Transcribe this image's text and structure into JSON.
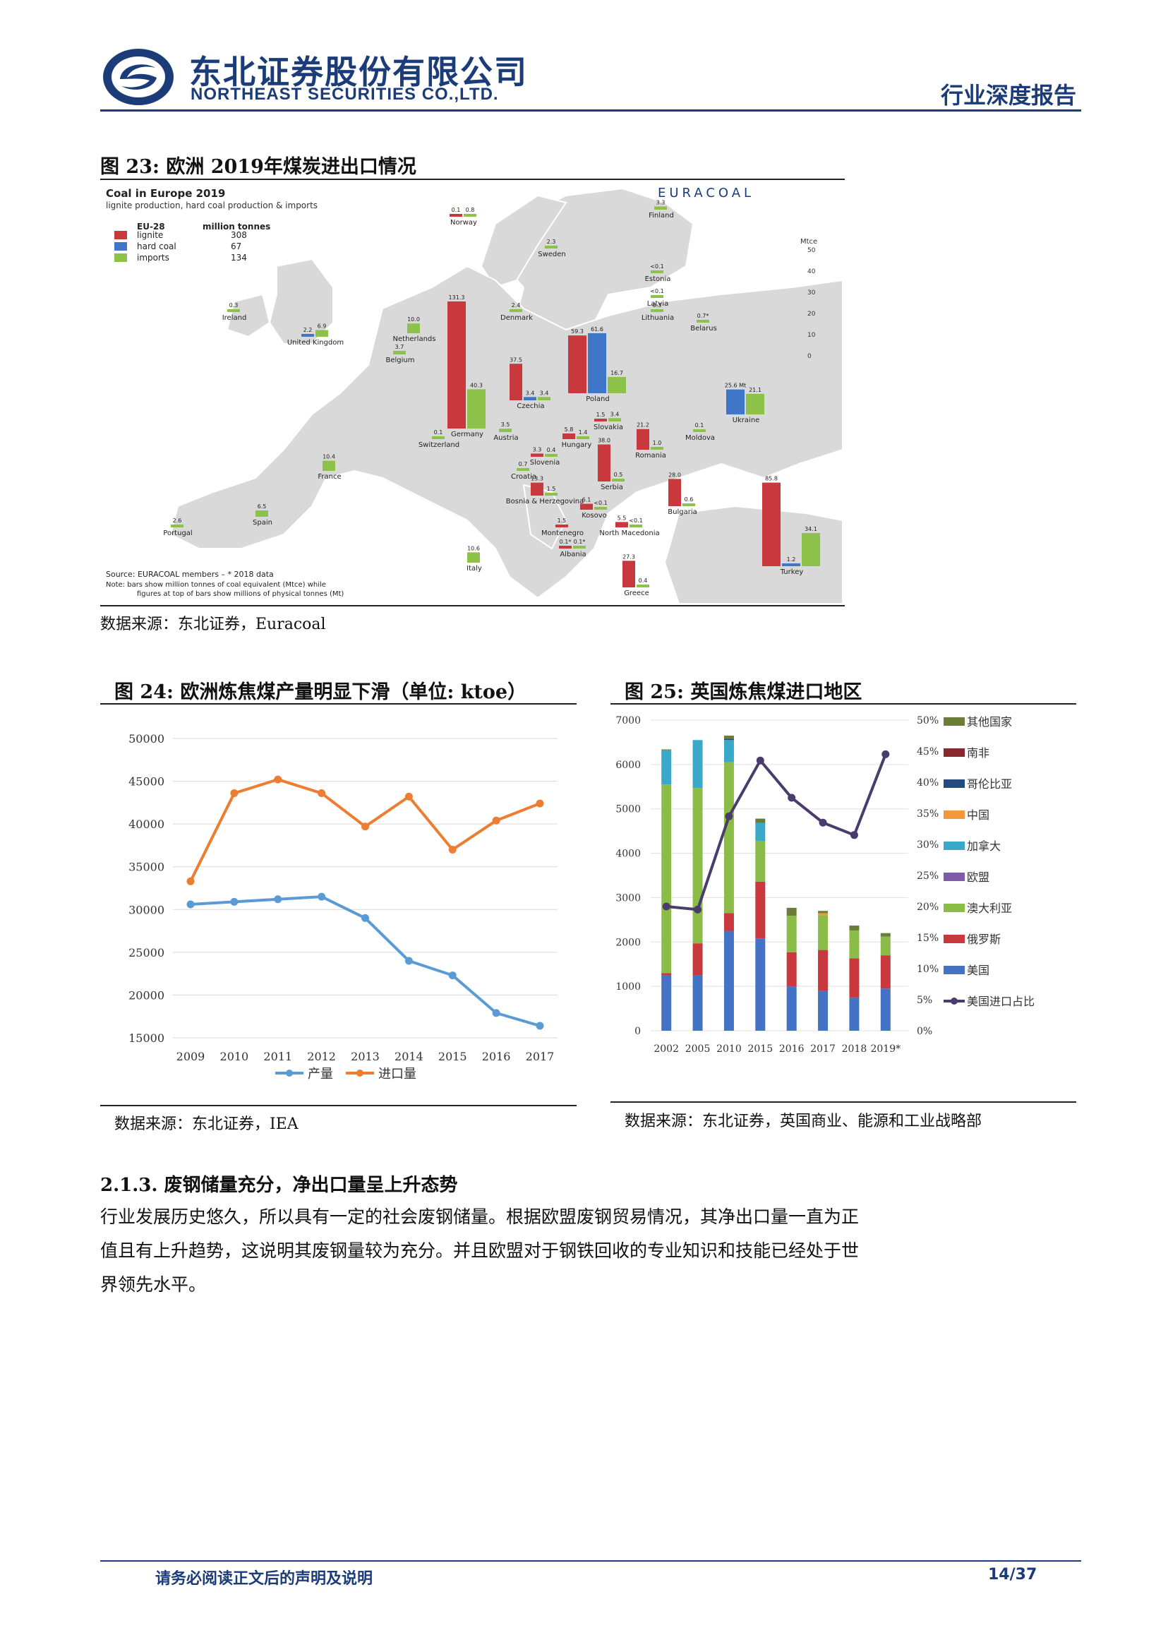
{
  "header": {
    "company_cn": "东北证券股份有限公司",
    "company_en": "NORTHEAST SECURITIES CO.,LTD.",
    "report_type": "行业深度报告"
  },
  "fig23": {
    "title": "图 23: 欧洲 2019年煤炭进出口情况",
    "source": "数据来源：东北证券，Euracoal",
    "map": {
      "title": "Coal in Europe 2019",
      "subtitle": "lignite production, hard coal production & imports",
      "brand": "EURACOAL",
      "legend_header": "EU-28",
      "legend_unit": "million tonnes",
      "legend": [
        {
          "label": "lignite",
          "value": "308",
          "color": "#c8383c"
        },
        {
          "label": "hard coal",
          "value": "67",
          "color": "#3f76c8"
        },
        {
          "label": "imports",
          "value": "134",
          "color": "#8cc24a"
        }
      ],
      "scale_unit": "Mtce",
      "scale_ticks": [
        "50",
        "40",
        "30",
        "20",
        "10",
        "0"
      ],
      "source_note": "Source: EURACOAL members  –  * 2018 data",
      "note1": "Note:    bars show million tonnes of coal equivalent (Mtce) while",
      "note2": "figures at top of bars show millions of physical tonnes (Mt)",
      "countries": [
        {
          "name": "Norway",
          "bars": [
            {
              "type": "lignite",
              "label": "0.1",
              "value": 0.1
            },
            {
              "type": "imports",
              "label": "0.8",
              "value": 0.8
            }
          ]
        },
        {
          "name": "Finland",
          "bars": [
            {
              "type": "imports",
              "label": "3.3",
              "value": 3.3
            }
          ]
        },
        {
          "name": "Sweden",
          "bars": [
            {
              "type": "imports",
              "label": "2.3",
              "value": 2.3
            }
          ]
        },
        {
          "name": "Estonia",
          "bars": [
            {
              "type": "imports",
              "label": "<0.1",
              "value": 0.1
            }
          ]
        },
        {
          "name": "Latvia",
          "bars": [
            {
              "type": "imports",
              "label": "<0.1",
              "value": 0.1
            }
          ]
        },
        {
          "name": "Lithuania",
          "bars": [
            {
              "type": "imports",
              "label": "0.3",
              "value": 0.3
            }
          ]
        },
        {
          "name": "Ireland",
          "bars": [
            {
              "type": "imports",
              "label": "0.3",
              "value": 0.3
            }
          ]
        },
        {
          "name": "United Kingdom",
          "bars": [
            {
              "type": "hard coal",
              "label": "2.2",
              "value": 2.2
            },
            {
              "type": "imports",
              "label": "6.9",
              "value": 6.9
            }
          ]
        },
        {
          "name": "Denmark",
          "bars": [
            {
              "type": "imports",
              "label": "2.4",
              "value": 2.4
            }
          ]
        },
        {
          "name": "Netherlands",
          "bars": [
            {
              "type": "imports",
              "label": "10.0",
              "value": 10.0
            }
          ]
        },
        {
          "name": "Belgium",
          "bars": [
            {
              "type": "imports",
              "label": "3.7",
              "value": 3.7
            }
          ]
        },
        {
          "name": "Germany",
          "bars": [
            {
              "type": "lignite",
              "label": "131.3",
              "value": 131.3
            },
            {
              "type": "imports",
              "label": "40.3",
              "value": 40.3
            }
          ]
        },
        {
          "name": "Poland",
          "bars": [
            {
              "type": "lignite",
              "label": "59.3",
              "value": 59.3
            },
            {
              "type": "hard coal",
              "label": "61.6",
              "value": 61.6
            },
            {
              "type": "imports",
              "label": "16.7",
              "value": 16.7
            }
          ]
        },
        {
          "name": "Czechia",
          "bars": [
            {
              "type": "lignite",
              "label": "37.5",
              "value": 37.5
            },
            {
              "type": "hard coal",
              "label": "3.4",
              "value": 3.4
            },
            {
              "type": "imports",
              "label": "3.4",
              "value": 3.4
            }
          ]
        },
        {
          "name": "Belarus",
          "bars": [
            {
              "type": "imports",
              "label": "0.7*",
              "value": 0.7
            }
          ]
        },
        {
          "name": "Ukraine",
          "bars": [
            {
              "type": "hard coal",
              "label": "25.6 Mt",
              "value": 25.6
            },
            {
              "type": "imports",
              "label": "21.1",
              "value": 21.1
            }
          ]
        },
        {
          "name": "Slovakia",
          "bars": [
            {
              "type": "lignite",
              "label": "1.5",
              "value": 1.5
            },
            {
              "type": "imports",
              "label": "3.4",
              "value": 3.4
            }
          ]
        },
        {
          "name": "Austria",
          "bars": [
            {
              "type": "imports",
              "label": "3.5",
              "value": 3.5
            }
          ]
        },
        {
          "name": "Hungary",
          "bars": [
            {
              "type": "lignite",
              "label": "5.8",
              "value": 5.8
            },
            {
              "type": "imports",
              "label": "1.4",
              "value": 1.4
            }
          ]
        },
        {
          "name": "Switzerland",
          "bars": [
            {
              "type": "imports",
              "label": "0.1",
              "value": 0.1
            }
          ]
        },
        {
          "name": "France",
          "bars": [
            {
              "type": "imports",
              "label": "10.4",
              "value": 10.4
            }
          ]
        },
        {
          "name": "Slovenia",
          "bars": [
            {
              "type": "lignite",
              "label": "3.3",
              "value": 3.3
            },
            {
              "type": "imports",
              "label": "0.4",
              "value": 0.4
            }
          ]
        },
        {
          "name": "Croatia",
          "bars": [
            {
              "type": "imports",
              "label": "0.7",
              "value": 0.7
            }
          ]
        },
        {
          "name": "Romania",
          "bars": [
            {
              "type": "lignite",
              "label": "21.2",
              "value": 21.2
            },
            {
              "type": "imports",
              "label": "1.0",
              "value": 1.0
            }
          ]
        },
        {
          "name": "Moldova",
          "bars": [
            {
              "type": "imports",
              "label": "0.1",
              "value": 0.1
            }
          ]
        },
        {
          "name": "Serbia",
          "bars": [
            {
              "type": "lignite",
              "label": "38.0",
              "value": 38.0
            },
            {
              "type": "imports",
              "label": "0.5",
              "value": 0.5
            }
          ]
        },
        {
          "name": "Bosnia & Herzegovina",
          "bars": [
            {
              "type": "lignite",
              "label": "13.3",
              "value": 13.3
            },
            {
              "type": "imports",
              "label": "1.5",
              "value": 1.5
            }
          ]
        },
        {
          "name": "Kosovo",
          "bars": [
            {
              "type": "lignite",
              "label": "6.1",
              "value": 6.1
            },
            {
              "type": "imports",
              "label": "<0.1",
              "value": 0.1
            }
          ]
        },
        {
          "name": "Bulgaria",
          "bars": [
            {
              "type": "lignite",
              "label": "28.0",
              "value": 28.0
            },
            {
              "type": "imports",
              "label": "0.6",
              "value": 0.6
            }
          ]
        },
        {
          "name": "Montenegro",
          "bars": [
            {
              "type": "lignite",
              "label": "1.5",
              "value": 1.5
            }
          ]
        },
        {
          "name": "North Macedonia",
          "bars": [
            {
              "type": "lignite",
              "label": "5.5",
              "value": 5.5
            },
            {
              "type": "imports",
              "label": "<0.1",
              "value": 0.1
            }
          ]
        },
        {
          "name": "Albania",
          "bars": [
            {
              "type": "lignite",
              "label": "0.1*",
              "value": 0.1
            },
            {
              "type": "imports",
              "label": "0.1*",
              "value": 0.1
            }
          ]
        },
        {
          "name": "Portugal",
          "bars": [
            {
              "type": "imports",
              "label": "2.6",
              "value": 2.6
            }
          ]
        },
        {
          "name": "Spain",
          "bars": [
            {
              "type": "imports",
              "label": "6.5",
              "value": 6.5
            }
          ]
        },
        {
          "name": "Italy",
          "bars": [
            {
              "type": "imports",
              "label": "10.6",
              "value": 10.6
            }
          ]
        },
        {
          "name": "Greece",
          "bars": [
            {
              "type": "lignite",
              "label": "27.3",
              "value": 27.3
            },
            {
              "type": "imports",
              "label": "0.4",
              "value": 0.4
            }
          ]
        },
        {
          "name": "Turkey",
          "bars": [
            {
              "type": "lignite",
              "label": "85.8",
              "value": 85.8
            },
            {
              "type": "hard coal",
              "label": "1.2",
              "value": 1.2
            },
            {
              "type": "imports",
              "label": "34.1",
              "value": 34.1
            }
          ]
        }
      ]
    }
  },
  "fig24": {
    "title": "图 24: 欧洲炼焦煤产量明显下滑（单位: ktoe）",
    "source": "数据来源：东北证券，IEA"
  },
  "fig25": {
    "title": "图 25: 英国炼焦煤进口地区",
    "source": "数据来源：东北证券，英国商业、能源和工业战略部"
  },
  "chart_data": [
    {
      "type": "line",
      "x": [
        "2009",
        "2010",
        "2011",
        "2012",
        "2013",
        "2014",
        "2015",
        "2016",
        "2017"
      ],
      "series": [
        {
          "name": "产量",
          "color": "#5b9bd5",
          "values": [
            30600,
            30900,
            31200,
            31500,
            29000,
            24000,
            22300,
            17900,
            16400
          ]
        },
        {
          "name": "进口量",
          "color": "#ed7d31",
          "values": [
            33300,
            43600,
            45200,
            43600,
            39700,
            43200,
            37000,
            40400,
            42400
          ]
        }
      ],
      "ylim": [
        15000,
        50000
      ],
      "yticks": [
        "15000",
        "20000",
        "25000",
        "30000",
        "35000",
        "40000",
        "45000",
        "50000"
      ],
      "legend": "bottom",
      "grid": true
    },
    {
      "type": "bar",
      "stacked": true,
      "categories": [
        "2002",
        "2005",
        "2010",
        "2015",
        "2016",
        "2017",
        "2018",
        "2019*"
      ],
      "series": [
        {
          "name": "美国",
          "color": "#4472c4",
          "values": [
            1250,
            1250,
            2250,
            2080,
            1000,
            900,
            750,
            950
          ]
        },
        {
          "name": "俄罗斯",
          "color": "#c8383c",
          "values": [
            50,
            720,
            400,
            1280,
            770,
            920,
            880,
            750
          ]
        },
        {
          "name": "澳大利亚",
          "color": "#8cbc48",
          "values": [
            4250,
            3500,
            3400,
            920,
            820,
            780,
            630,
            420
          ]
        },
        {
          "name": "欧盟",
          "color": "#7d5ca8",
          "values": [
            0,
            0,
            0,
            0,
            0,
            0,
            0,
            0
          ]
        },
        {
          "name": "加拿大",
          "color": "#3aa8c8",
          "values": [
            770,
            1080,
            500,
            400,
            0,
            0,
            0,
            0
          ]
        },
        {
          "name": "中国",
          "color": "#f3983c",
          "values": [
            0,
            0,
            0,
            0,
            0,
            50,
            0,
            0
          ]
        },
        {
          "name": "哥伦比亚",
          "color": "#254a80",
          "values": [
            0,
            0,
            30,
            0,
            0,
            0,
            0,
            0
          ]
        },
        {
          "name": "南非",
          "color": "#8a2830",
          "values": [
            0,
            0,
            0,
            0,
            0,
            0,
            0,
            0
          ]
        },
        {
          "name": "其他国家",
          "color": "#6b7d38",
          "values": [
            20,
            0,
            70,
            100,
            180,
            50,
            110,
            80
          ]
        }
      ],
      "line_series": {
        "name": "美国进口占比",
        "color": "#4a3c6c",
        "values": [
          20,
          19.5,
          34.5,
          43.5,
          37.5,
          33.5,
          31.5,
          44.5
        ]
      },
      "ylim": [
        0,
        7000
      ],
      "yticks": [
        "0",
        "1000",
        "2000",
        "3000",
        "4000",
        "5000",
        "6000",
        "7000"
      ],
      "y2lim": [
        0,
        50
      ],
      "y2ticks": [
        "0%",
        "5%",
        "10%",
        "15%",
        "20%",
        "25%",
        "30%",
        "35%",
        "40%",
        "45%",
        "50%"
      ],
      "legend": "right",
      "grid": true
    }
  ],
  "section": {
    "heading": "2.1.3.   废钢储量充分，净出口量呈上升态势",
    "body": "行业发展历史悠久，所以具有一定的社会废钢储量。根据欧盟废钢贸易情况，其净出口量一直为正值且有上升趋势，这说明其废钢量较为充分。并且欧盟对于钢铁回收的专业知识和技能已经处于世界领先水平。"
  },
  "footer": {
    "note": "请务必阅读正文后的声明及说明",
    "page": "14/37"
  }
}
